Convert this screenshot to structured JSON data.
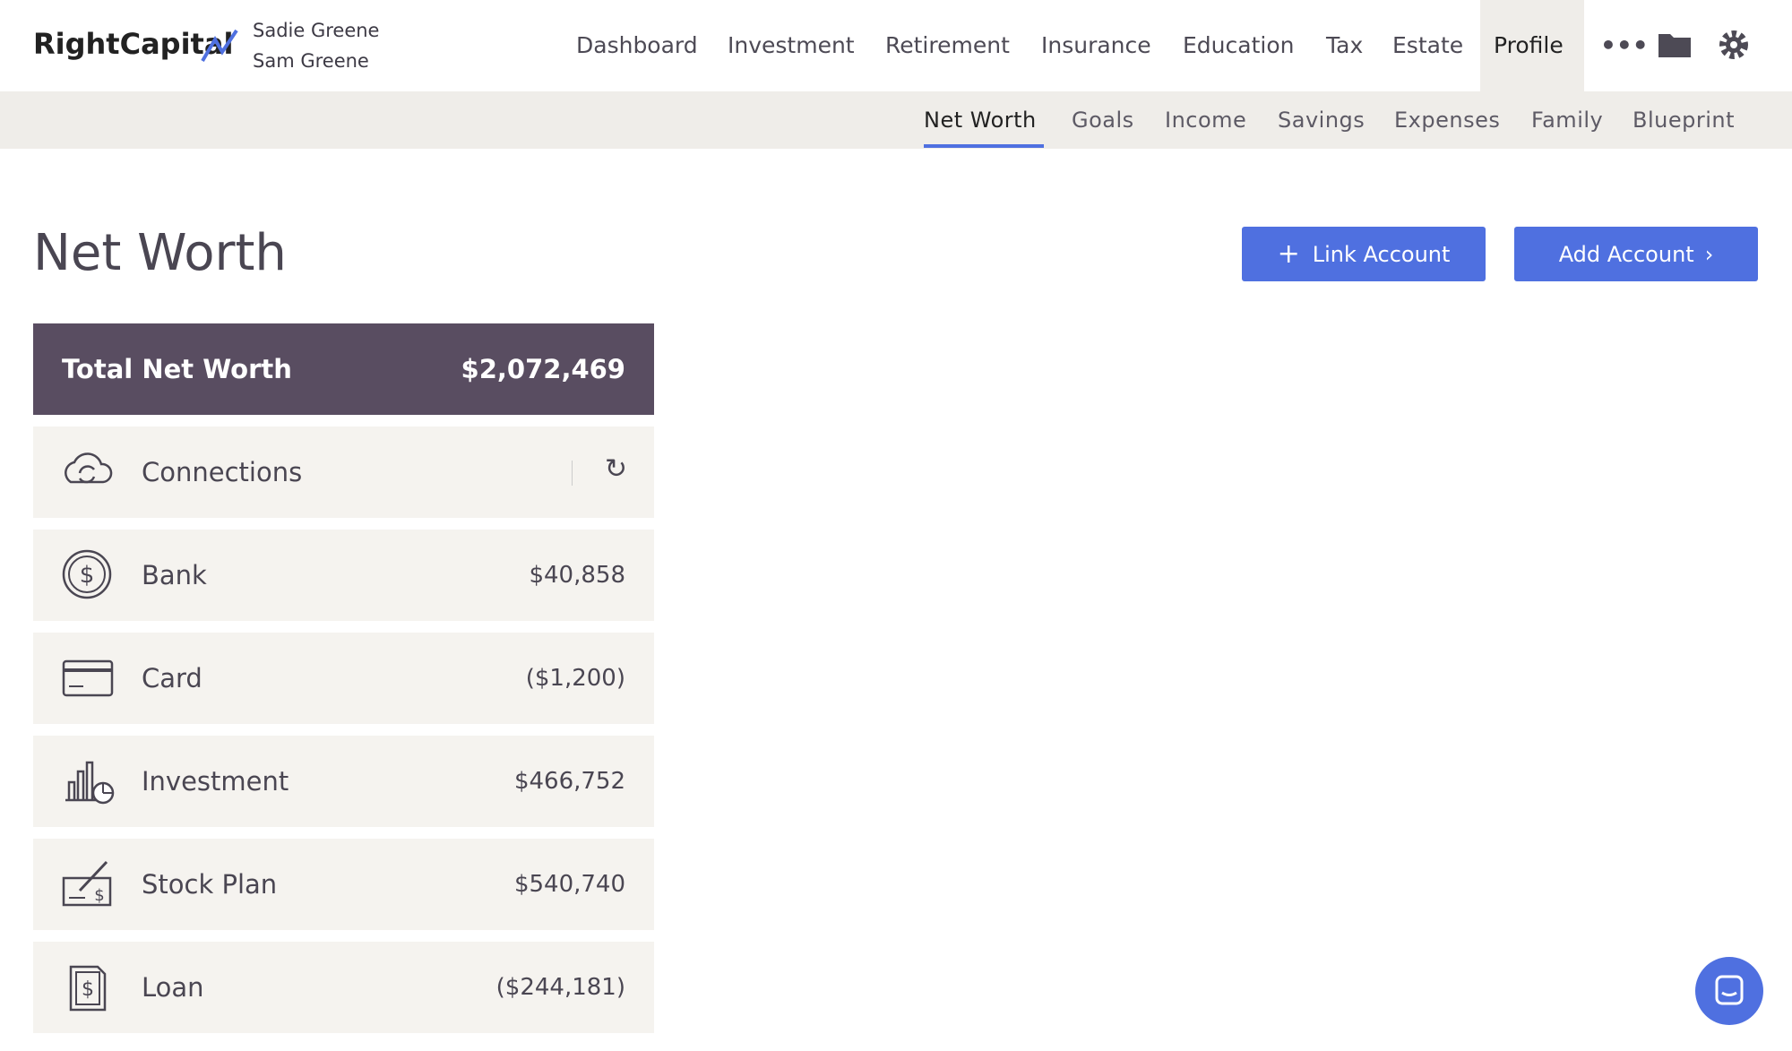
{
  "header": {
    "brand": "RightCapital",
    "users": [
      "Sadie Greene",
      "Sam Greene"
    ],
    "nav": [
      "Dashboard",
      "Investment",
      "Retirement",
      "Insurance",
      "Education",
      "Tax",
      "Estate",
      "Profile"
    ],
    "subnav": [
      "Net Worth",
      "Goals",
      "Income",
      "Savings",
      "Expenses",
      "Family",
      "Blueprint"
    ]
  },
  "page": {
    "title": "Net Worth",
    "buttons": [
      "Link Account",
      "Add Account"
    ],
    "total": {
      "label": "Total Net Worth",
      "value": "$2,072,469"
    },
    "rows": [
      {
        "label": "Connections"
      },
      {
        "label": "Bank",
        "value": "$40,858"
      },
      {
        "label": "Card",
        "value": "($1,200)"
      },
      {
        "label": "Investment",
        "value": "$466,752"
      },
      {
        "label": "Stock Plan",
        "value": "$540,740"
      },
      {
        "label": "Loan",
        "value": "($244,181)"
      }
    ]
  }
}
